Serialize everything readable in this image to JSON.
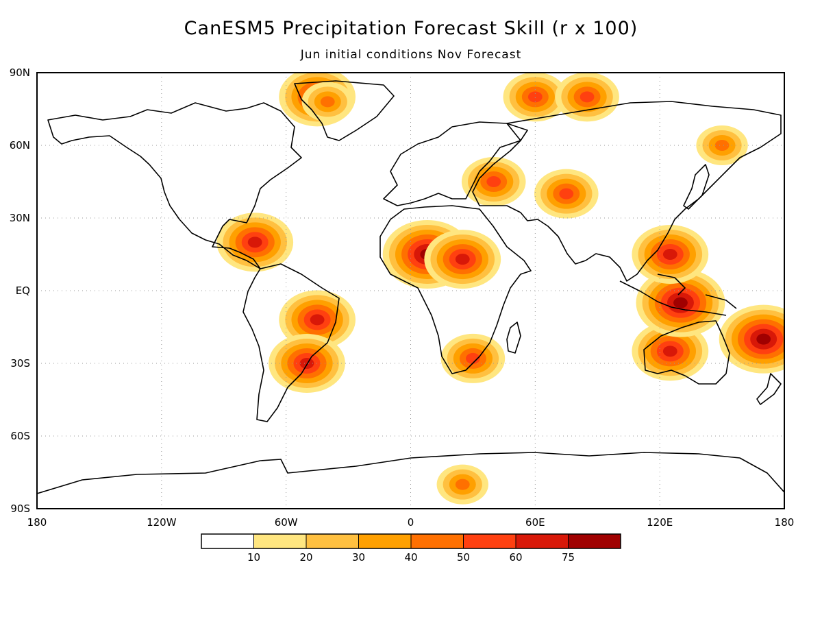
{
  "title": "CanESM5 Precipitation Forecast Skill (r x 100)",
  "subtitle": "Jun initial conditions   Nov Forecast",
  "map": {
    "projection": "equirectangular",
    "lon_range": [
      -180,
      180
    ],
    "lat_range": [
      -90,
      90
    ],
    "lat_labels": [
      "90N",
      "60N",
      "30N",
      "EQ",
      "30S",
      "60S",
      "90S"
    ],
    "lat_values": [
      90,
      60,
      30,
      0,
      -30,
      -60,
      -90
    ],
    "lon_labels": [
      "180",
      "120W",
      "60W",
      "0",
      "60E",
      "120E",
      "180"
    ],
    "lon_values": [
      -180,
      -120,
      -60,
      0,
      60,
      120,
      180
    ],
    "grid": "dotted"
  },
  "colorbar": {
    "levels": [
      "10",
      "20",
      "30",
      "40",
      "50",
      "60",
      "75"
    ],
    "colors": [
      "#ffffff",
      "#ffe680",
      "#ffc040",
      "#ffa000",
      "#ff7000",
      "#ff4010",
      "#d81808",
      "#a00000"
    ]
  },
  "skill_regions": [
    {
      "lon": -45,
      "lat": 80,
      "level": 6
    },
    {
      "lon": -40,
      "lat": 78,
      "level": 4
    },
    {
      "lon": 60,
      "lat": 80,
      "level": 5
    },
    {
      "lon": 85,
      "lat": 80,
      "level": 5
    },
    {
      "lon": -75,
      "lat": 20,
      "level": 6
    },
    {
      "lon": -45,
      "lat": -12,
      "level": 6
    },
    {
      "lon": -50,
      "lat": -30,
      "level": 6
    },
    {
      "lon": 8,
      "lat": 15,
      "level": 7
    },
    {
      "lon": 25,
      "lat": 13,
      "level": 6
    },
    {
      "lon": 30,
      "lat": -28,
      "level": 5
    },
    {
      "lon": 125,
      "lat": -25,
      "level": 6
    },
    {
      "lon": 130,
      "lat": -5,
      "level": 7
    },
    {
      "lon": 125,
      "lat": 15,
      "level": 6
    },
    {
      "lon": 170,
      "lat": -20,
      "level": 7
    },
    {
      "lon": 40,
      "lat": 45,
      "level": 5
    },
    {
      "lon": 75,
      "lat": 40,
      "level": 5
    },
    {
      "lon": 150,
      "lat": 60,
      "level": 4
    },
    {
      "lon": 25,
      "lat": -80,
      "level": 4
    }
  ]
}
